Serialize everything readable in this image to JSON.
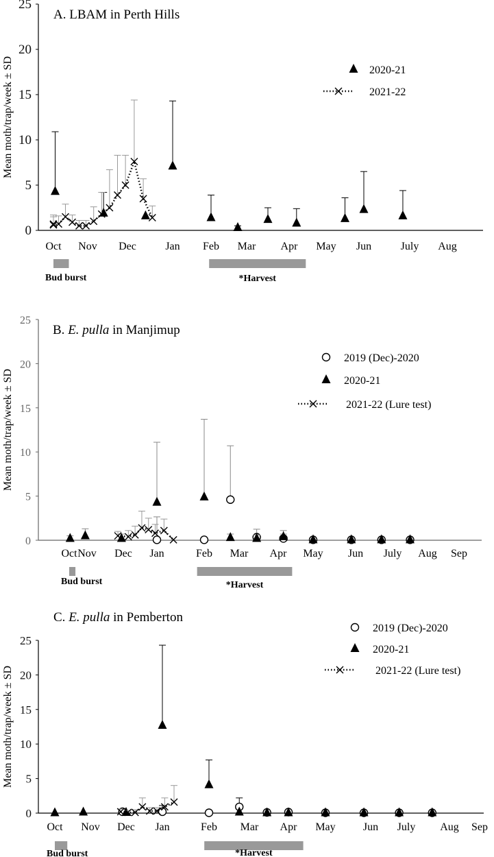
{
  "chart_data": [
    {
      "type": "scatter",
      "title_prefix": "A. ",
      "title_main": "LBAM in Perth Hills",
      "title_italic": "",
      "ylabel": "Mean moth/trap/week ± SD",
      "ylim": [
        0,
        25
      ],
      "yticks": [
        0,
        5,
        10,
        15,
        20,
        25
      ],
      "month_labels": [
        "Oct",
        "Nov",
        "Dec",
        "Jan",
        "Feb",
        "Mar",
        "Apr",
        "May",
        "Jun",
        "July",
        "Aug"
      ],
      "periods": [
        {
          "label": "Bud burst",
          "start": 0.85,
          "end": 1.45
        },
        {
          "label": "*Harvest",
          "start": 4.95,
          "end": 7.45
        }
      ],
      "series": [
        {
          "name": "2020-21",
          "marker": "triangle",
          "x": [
            1.05,
            2.4,
            3.4,
            4.0,
            5.0,
            5.75,
            6.5,
            7.2,
            8.5,
            9.0,
            9.85
          ],
          "y": [
            4.3,
            1.9,
            1.6,
            7.1,
            1.4,
            0.3,
            1.2,
            0.8,
            1.3,
            2.3,
            1.6
          ],
          "sd": [
            6.6,
            2.3,
            0,
            7.2,
            2.5,
            0.2,
            1.3,
            1.6,
            2.3,
            4.2,
            2.8
          ]
        },
        {
          "name": "2021-22",
          "marker": "cross-dotted",
          "x": [
            0.75,
            0.95,
            1.15,
            1.35,
            1.55,
            1.75,
            1.95,
            2.15,
            2.35,
            2.55,
            2.75,
            2.95,
            3.15,
            3.35,
            3.55
          ],
          "y": [
            0.7,
            0.6,
            0.7,
            1.5,
            0.9,
            0.5,
            0.5,
            1.0,
            1.8,
            2.5,
            3.9,
            5.0,
            7.6,
            3.5,
            1.4
          ],
          "sd": [
            1.0,
            0.9,
            0.9,
            1.4,
            0.8,
            0.6,
            0.6,
            1.6,
            2.4,
            4.2,
            4.4,
            3.3,
            6.8,
            2.2,
            1.3
          ]
        }
      ]
    },
    {
      "type": "scatter",
      "title_prefix": "B. ",
      "title_main": " in Manjimup",
      "title_italic": "E. pulla",
      "ylabel": "Mean moth/trap/week ± SD",
      "ylim": [
        0,
        25
      ],
      "yticks": [
        0,
        5,
        10,
        15,
        20,
        25
      ],
      "month_labels": [
        "Oct",
        "Nov",
        "Dec",
        "Jan",
        "Feb",
        "Mar",
        "Apr",
        "May",
        "Jun",
        "July",
        "Aug",
        "Sep"
      ],
      "periods": [
        {
          "label": "Bud burst",
          "start": 0.85,
          "end": 1.35
        },
        {
          "label": "*Harvest",
          "start": 4.85,
          "end": 7.4
        }
      ],
      "series": [
        {
          "name": "2019 (Dec)-2020",
          "marker": "circle",
          "x": [
            4.0,
            5.0,
            5.75,
            6.45,
            7.15,
            8.0,
            8.9,
            9.7,
            10.5
          ],
          "y": [
            0.05,
            0.05,
            4.6,
            0.35,
            0.2,
            0.05,
            0.05,
            0.05,
            0.05
          ],
          "sd": [
            2.6,
            0,
            6.1,
            0.9,
            0.5,
            0,
            0,
            0,
            0
          ]
        },
        {
          "name": "2020-21",
          "marker": "triangle",
          "x": [
            1.05,
            1.9,
            2.95,
            4.0,
            5.0,
            5.75,
            6.45,
            7.15,
            8.0,
            8.9,
            9.7,
            10.5
          ],
          "y": [
            0.2,
            0.5,
            0.2,
            4.3,
            4.9,
            0.3,
            0.2,
            0.4,
            0.05,
            0.05,
            0.05,
            0.05
          ],
          "sd": [
            0.3,
            0.8,
            0.5,
            6.8,
            8.8,
            0.4,
            0.4,
            0.7,
            0,
            0,
            0,
            0
          ]
        },
        {
          "name": "2021-22 (Lure test)",
          "marker": "cross-dotted",
          "x": [
            2.85,
            3.15,
            3.35,
            3.55,
            3.75,
            3.95,
            4.15,
            4.35
          ],
          "y": [
            0.5,
            0.4,
            0.6,
            1.4,
            1.2,
            0.8,
            1.1,
            0.05
          ],
          "sd": [
            0.5,
            0.7,
            1.0,
            1.9,
            1.3,
            1.0,
            1.3,
            0
          ]
        }
      ]
    },
    {
      "type": "scatter",
      "title_prefix": "C. ",
      "title_main": " in Pemberton",
      "title_italic": "E. pulla",
      "ylabel": "Mean moth/trap/week ± SD",
      "ylim": [
        0,
        25
      ],
      "yticks": [
        0,
        5,
        10,
        15,
        20,
        25
      ],
      "month_labels": [
        "Oct",
        "Nov",
        "Dec",
        "Jan",
        "Feb",
        "Mar",
        "Apr",
        "May",
        "Jun",
        "July",
        "Aug",
        "Sep"
      ],
      "periods": [
        {
          "label": "Bud burst",
          "start": 0.85,
          "end": 1.35
        },
        {
          "label": "*Harvest",
          "start": 4.9,
          "end": 7.4
        }
      ],
      "series": [
        {
          "name": "2019 (Dec)-2020",
          "marker": "circle",
          "x": [
            2.9,
            4.0,
            5.0,
            5.75,
            6.45,
            7.0,
            8.0,
            8.85,
            9.8,
            10.6
          ],
          "y": [
            0.2,
            0.2,
            0.05,
            0.9,
            0.1,
            0.15,
            0.05,
            0.05,
            0.05,
            0.05
          ],
          "sd": [
            0,
            0.9,
            0,
            1.3,
            0.2,
            0.3,
            0,
            0,
            0,
            0
          ]
        },
        {
          "name": "2020-21",
          "marker": "triangle",
          "x": [
            1.0,
            1.8,
            3.0,
            4.0,
            5.0,
            5.75,
            6.45,
            7.0,
            8.0,
            8.85,
            9.8,
            10.6
          ],
          "y": [
            0.05,
            0.15,
            0.1,
            12.7,
            4.1,
            0.15,
            0.05,
            0.05,
            0.05,
            0.05,
            0.05,
            0.05
          ],
          "sd": [
            0,
            0,
            0,
            11.6,
            3.6,
            0,
            0,
            0,
            0,
            0,
            0,
            0
          ]
        },
        {
          "name": "2021-22 (Lure test)",
          "marker": "cross-dotted",
          "x": [
            2.85,
            3.05,
            3.25,
            3.45,
            3.65,
            3.85,
            4.05,
            4.25
          ],
          "y": [
            0.2,
            0.1,
            0.1,
            0.9,
            0.3,
            0.3,
            0.9,
            1.6
          ],
          "sd": [
            0.4,
            0.3,
            0.4,
            1.3,
            0.5,
            0.5,
            1.3,
            2.4
          ]
        }
      ]
    }
  ]
}
